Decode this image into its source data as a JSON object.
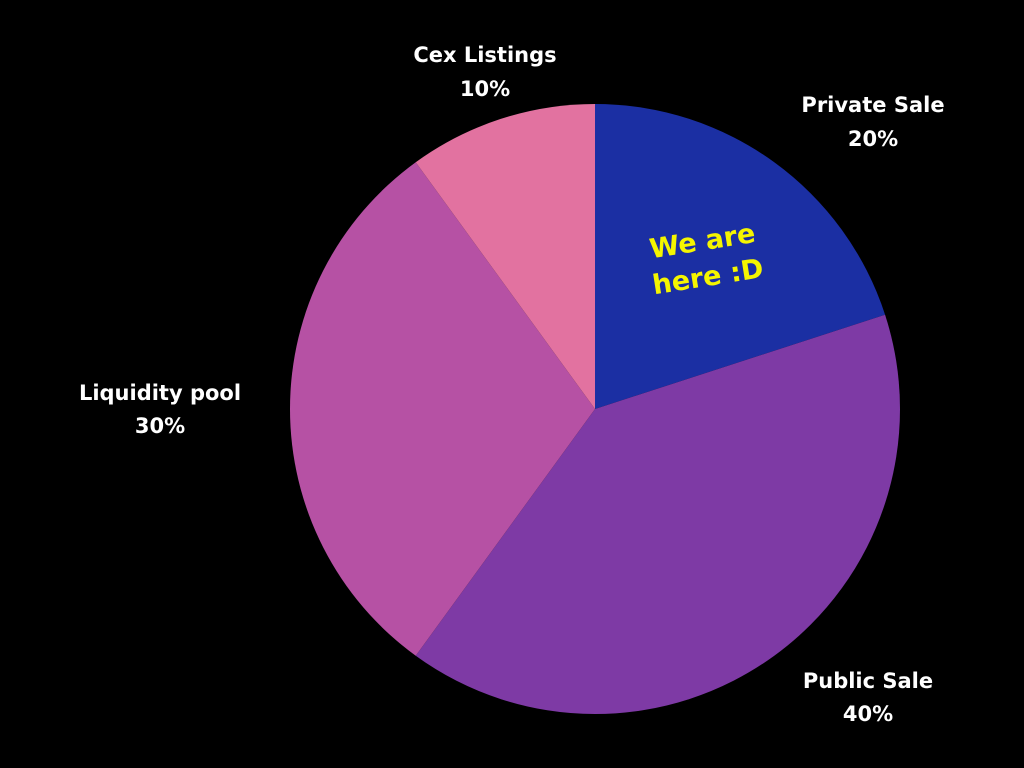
{
  "chart_data": {
    "type": "pie",
    "slices": [
      {
        "label": "Private Sale",
        "percent_text": "20%",
        "value": 20,
        "color": "#1b2fa3"
      },
      {
        "label": "Public Sale",
        "percent_text": "40%",
        "value": 40,
        "color": "#7e3aa5"
      },
      {
        "label": "Liquidity pool",
        "percent_text": "30%",
        "value": 30,
        "color": "#b651a4"
      },
      {
        "label": "Cex Listings",
        "percent_text": "10%",
        "value": 10,
        "color": "#e272a0"
      }
    ],
    "start_angle_deg": 0,
    "direction": "clockwise",
    "legend": "none",
    "background": "#000000"
  },
  "annotation": {
    "line1": "We are",
    "line2": "here :D",
    "slice": "Private Sale",
    "color": "#f5f500"
  }
}
